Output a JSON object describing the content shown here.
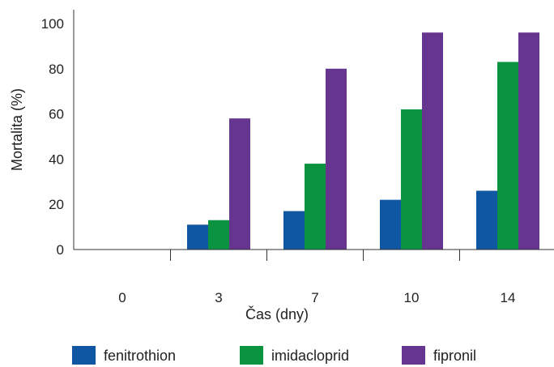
{
  "chart_data": {
    "type": "bar",
    "title": "",
    "xlabel": "Čas (dny)",
    "ylabel": "Mortalita (%)",
    "categories": [
      "0",
      "3",
      "7",
      "10",
      "14"
    ],
    "ylim": [
      0,
      100
    ],
    "yticks": [
      "0",
      "20",
      "40",
      "60",
      "80",
      "100"
    ],
    "grid": false,
    "legend_position": "bottom",
    "series": [
      {
        "name": "fenitrothion",
        "color": "#0f57a2",
        "values": [
          0,
          11,
          17,
          22,
          26
        ]
      },
      {
        "name": "imidacloprid",
        "color": "#0a9441",
        "values": [
          0,
          13,
          38,
          62,
          83
        ]
      },
      {
        "name": "fipronil",
        "color": "#66358f",
        "values": [
          0,
          58,
          80,
          96,
          96
        ]
      }
    ]
  }
}
